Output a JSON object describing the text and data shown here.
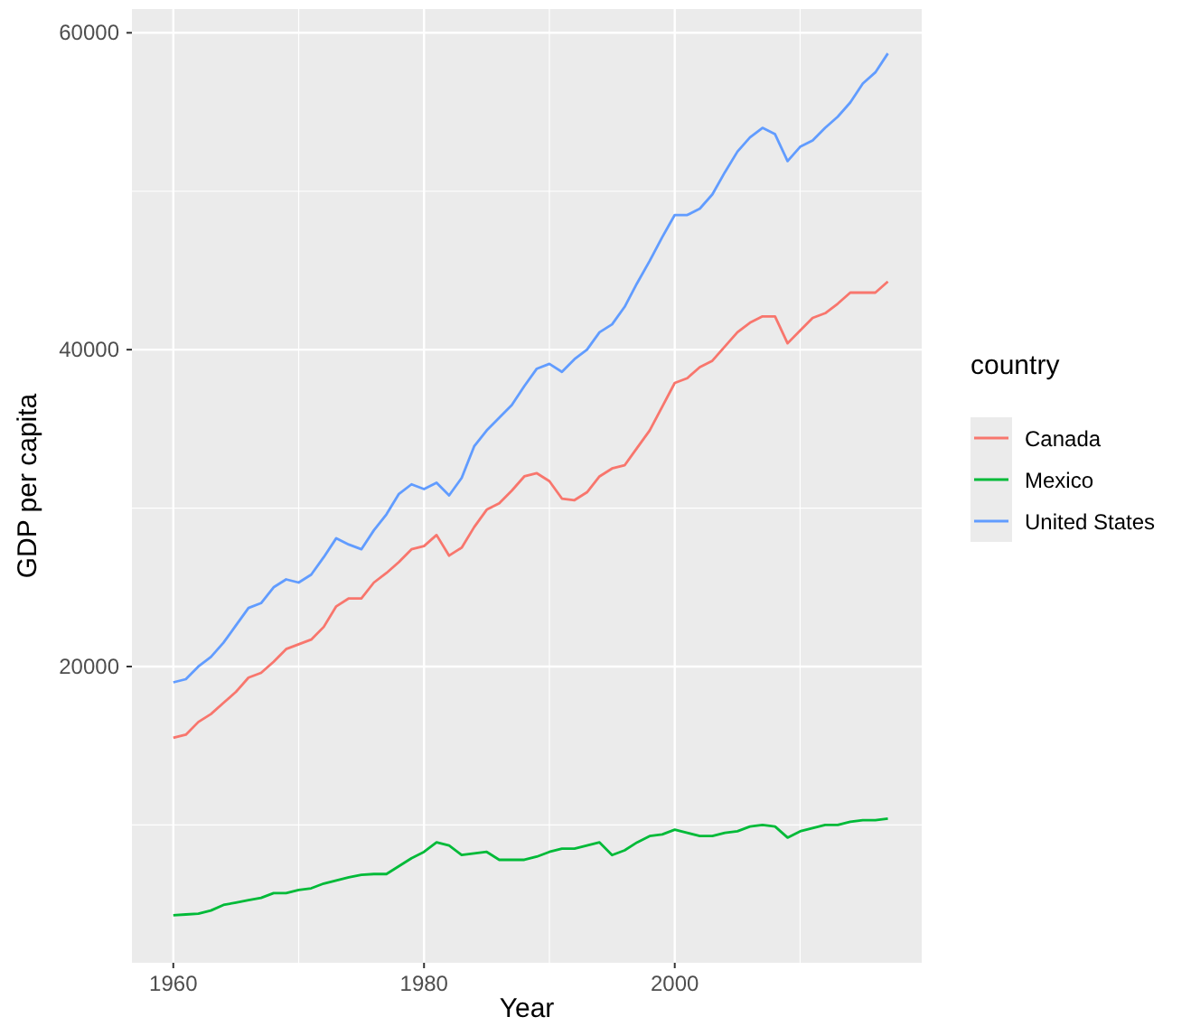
{
  "chart_data": {
    "type": "line",
    "xlabel": "Year",
    "ylabel": "GDP per capita",
    "legend_title": "country",
    "legend": "right",
    "grid": true,
    "x": [
      1960,
      1961,
      1962,
      1963,
      1964,
      1965,
      1966,
      1967,
      1968,
      1969,
      1970,
      1971,
      1972,
      1973,
      1974,
      1975,
      1976,
      1977,
      1978,
      1979,
      1980,
      1981,
      1982,
      1983,
      1984,
      1985,
      1986,
      1987,
      1988,
      1989,
      1990,
      1991,
      1992,
      1993,
      1994,
      1995,
      1996,
      1997,
      1998,
      1999,
      2000,
      2001,
      2002,
      2003,
      2004,
      2005,
      2006,
      2007,
      2008,
      2009,
      2010,
      2011,
      2012,
      2013,
      2014,
      2015,
      2016,
      2017
    ],
    "xlim": [
      1956.7,
      2019.7
    ],
    "xticks": [
      1960,
      1980,
      2000
    ],
    "ylim": [
      1300,
      61500
    ],
    "yticks": [
      20000,
      40000,
      60000
    ],
    "series": [
      {
        "name": "Canada",
        "color": "#f8766d",
        "values": [
          15500,
          15700,
          16500,
          17000,
          17700,
          18400,
          19300,
          19600,
          20300,
          21100,
          21400,
          21700,
          22500,
          23800,
          24300,
          24300,
          25300,
          25900,
          26600,
          27400,
          27600,
          28300,
          27000,
          27500,
          28800,
          29900,
          30300,
          31100,
          32000,
          32200,
          31700,
          30600,
          30500,
          31000,
          32000,
          32500,
          32700,
          33800,
          34900,
          36400,
          37900,
          38200,
          38900,
          39300,
          40200,
          41100,
          41700,
          42100,
          42100,
          40400,
          41200,
          42000,
          42300,
          42900,
          43600,
          43600,
          43600,
          44300
        ]
      },
      {
        "name": "Mexico",
        "color": "#00ba38",
        "values": [
          4300,
          4350,
          4400,
          4600,
          4950,
          5100,
          5250,
          5400,
          5700,
          5700,
          5900,
          6000,
          6300,
          6500,
          6700,
          6850,
          6900,
          6900,
          7400,
          7900,
          8300,
          8900,
          8700,
          8100,
          8200,
          8300,
          7800,
          7800,
          7800,
          8000,
          8300,
          8500,
          8500,
          8700,
          8900,
          8100,
          8400,
          8900,
          9300,
          9400,
          9700,
          9500,
          9300,
          9300,
          9500,
          9600,
          9900,
          10000,
          9900,
          9200,
          9600,
          9800,
          10000,
          10000,
          10200,
          10300,
          10300,
          10400
        ]
      },
      {
        "name": "United States",
        "color": "#619cff",
        "values": [
          19000,
          19200,
          20000,
          20600,
          21500,
          22600,
          23700,
          24000,
          25000,
          25500,
          25300,
          25800,
          26900,
          28100,
          27700,
          27400,
          28600,
          29600,
          30900,
          31500,
          31200,
          31600,
          30800,
          31900,
          33900,
          34900,
          35700,
          36500,
          37700,
          38800,
          39100,
          38600,
          39400,
          40000,
          41100,
          41600,
          42700,
          44200,
          45600,
          47100,
          48500,
          48500,
          48900,
          49800,
          51200,
          52500,
          53400,
          54000,
          53600,
          51900,
          52800,
          53200,
          54000,
          54700,
          55600,
          56800,
          57500,
          58700
        ]
      }
    ]
  }
}
